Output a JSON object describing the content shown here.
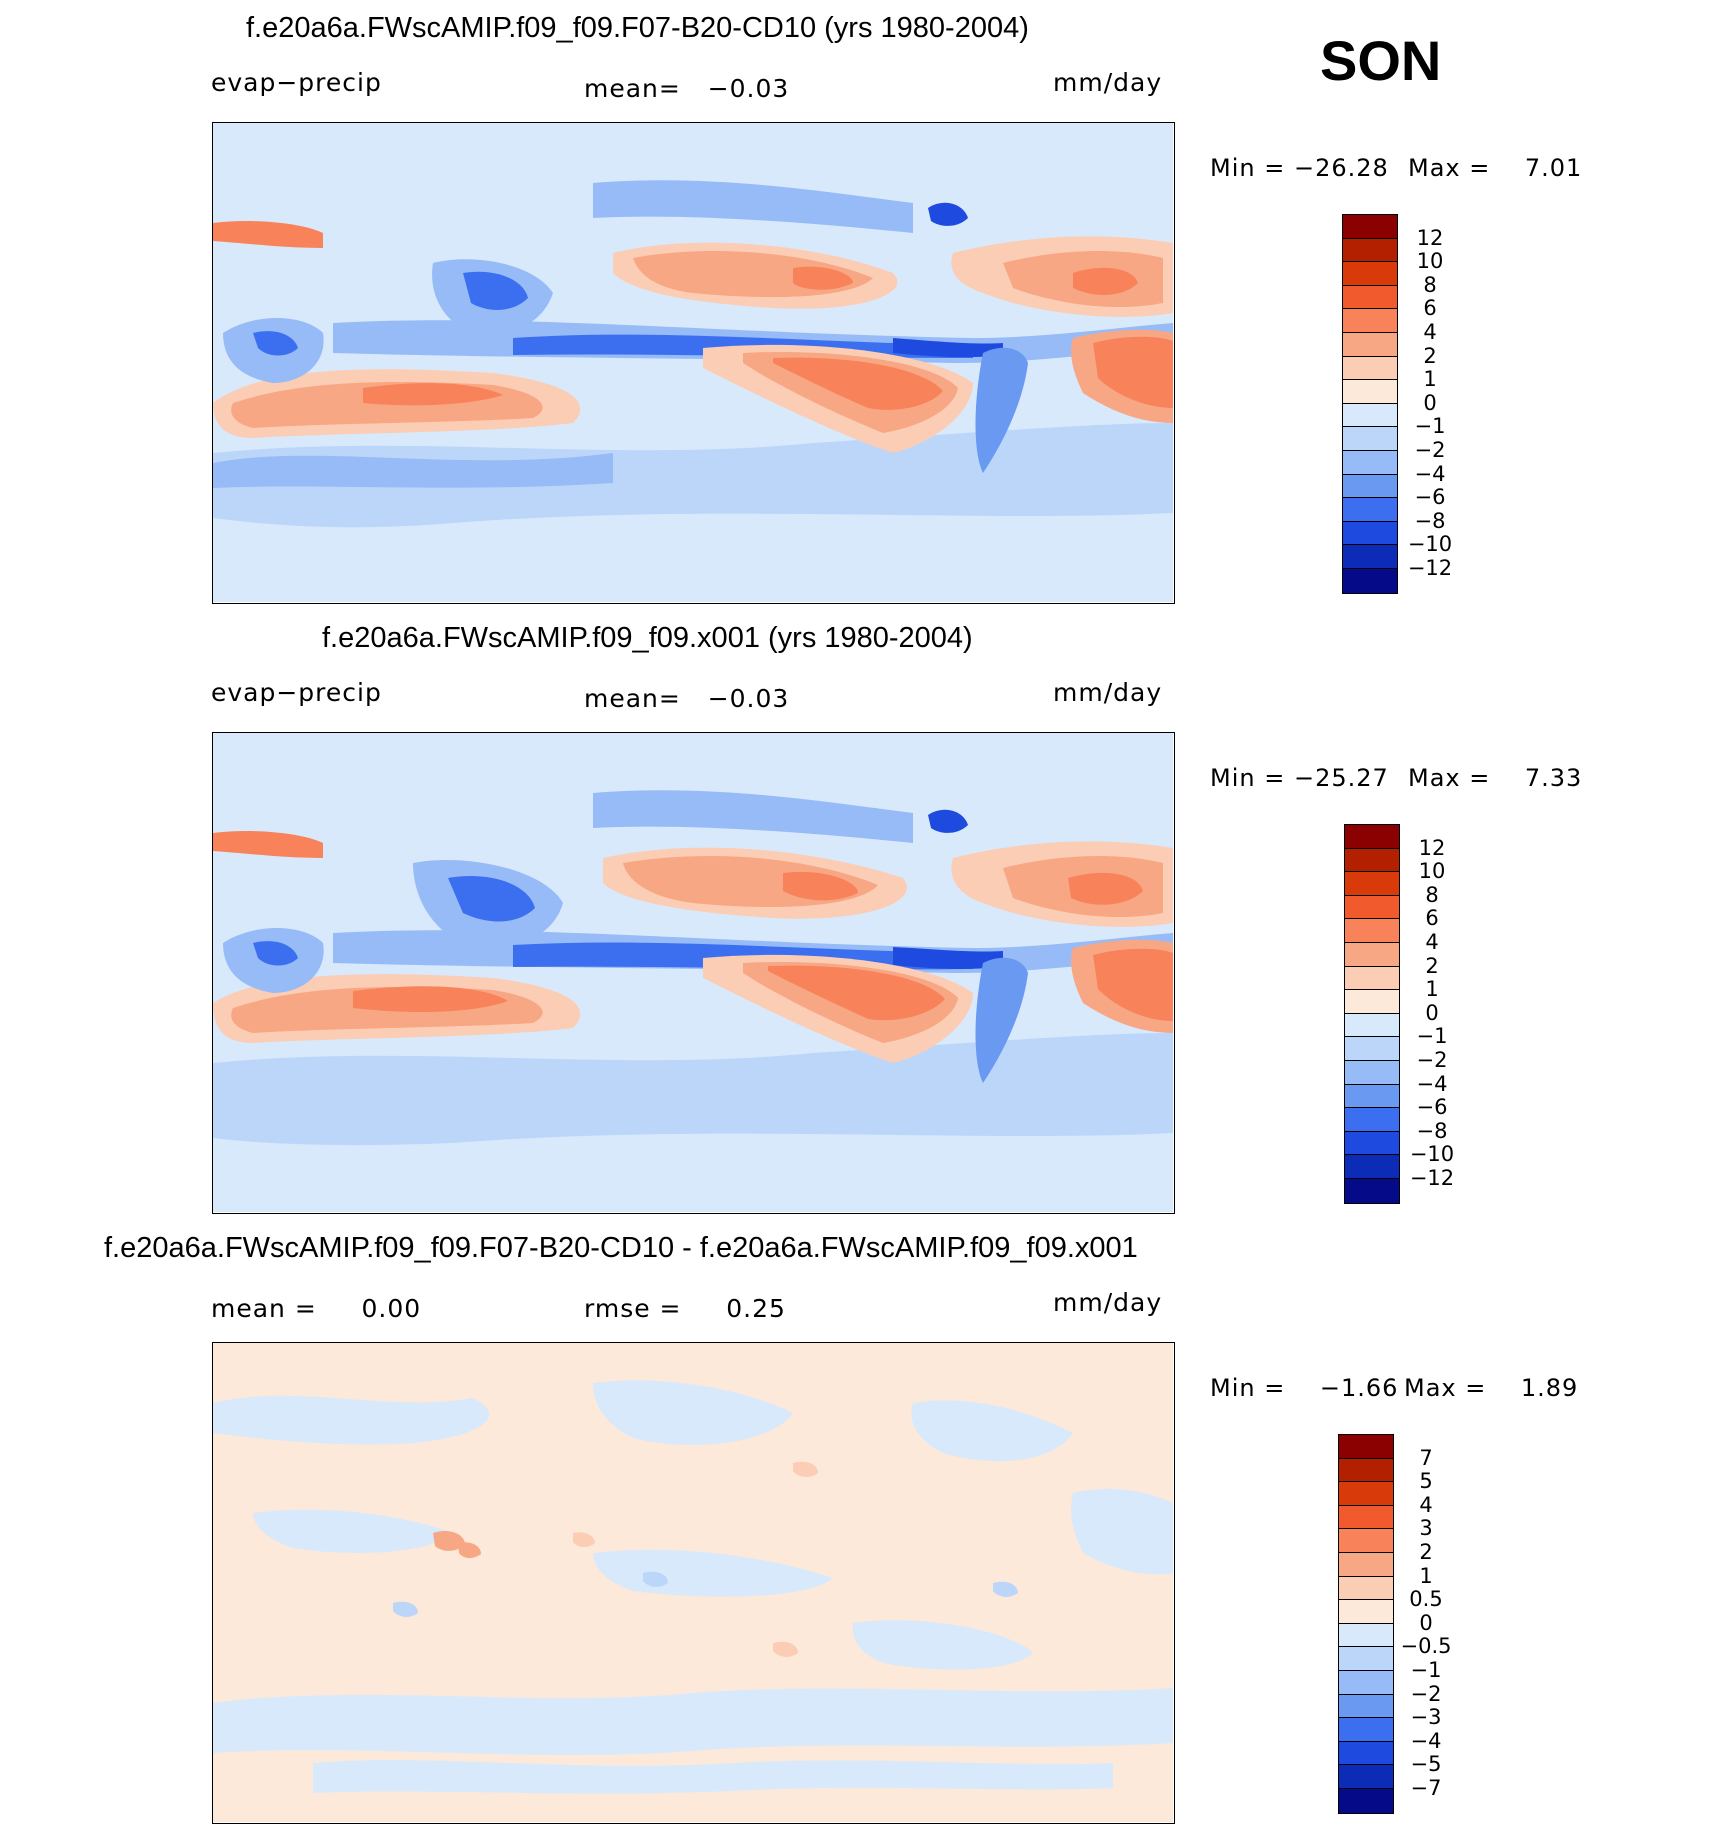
{
  "season": "SON",
  "units": "mm/day",
  "panels": [
    {
      "title": "f.e20a6a.FWscAMIP.f09_f09.F07-B20-CD10 (yrs 1980-2004)",
      "left_label": "evap−precip",
      "mean_label": "mean=",
      "mean_value": "−0.03",
      "units": "mm/day",
      "min_label": "Min  =",
      "min_value": "−26.28",
      "max_label": "Max  =",
      "max_value": "7.01"
    },
    {
      "title": "f.e20a6a.FWscAMIP.f09_f09.x001 (yrs 1980-2004)",
      "left_label": "evap−precip",
      "mean_label": "mean=",
      "mean_value": "−0.03",
      "units": "mm/day",
      "min_label": "Min  =",
      "min_value": "−25.27",
      "max_label": "Max  =",
      "max_value": "7.33"
    },
    {
      "title": "f.e20a6a.FWscAMIP.f09_f09.F07-B20-CD10 - f.e20a6a.FWscAMIP.f09_f09.x001",
      "mean_label": "mean  =",
      "mean_value": "0.00",
      "rmse_label": "rmse  =",
      "rmse_value": "0.25",
      "units": "mm/day",
      "min_label": "Min  =",
      "min_value": "−1.66",
      "max_label": "Max  =",
      "max_value": "1.89"
    }
  ],
  "colorbar_abs": {
    "levels": [
      "12",
      "10",
      "8",
      "6",
      "4",
      "2",
      "1",
      "0",
      "−1",
      "−2",
      "−4",
      "−6",
      "−8",
      "−10",
      "−12"
    ],
    "colors": [
      "#8b0000",
      "#b22000",
      "#d93a0a",
      "#f05a2c",
      "#f8835a",
      "#f8a785",
      "#fccdb5",
      "#fde9d9",
      "#d8e9fc",
      "#bcd6fa",
      "#96bbf6",
      "#6a99f2",
      "#3c6ff0",
      "#1e4ae0",
      "#0c2cb8",
      "#040a88"
    ]
  },
  "colorbar_diff": {
    "levels": [
      "7",
      "5",
      "4",
      "3",
      "2",
      "1",
      "0.5",
      "0",
      "−0.5",
      "−1",
      "−2",
      "−3",
      "−4",
      "−5",
      "−7"
    ],
    "colors": [
      "#8b0000",
      "#b22000",
      "#d93a0a",
      "#f05a2c",
      "#f8835a",
      "#f8a785",
      "#fccdb5",
      "#fde9d9",
      "#d8e9fc",
      "#bcd6fa",
      "#96bbf6",
      "#6a99f2",
      "#3c6ff0",
      "#1e4ae0",
      "#0c2cb8",
      "#040a88"
    ]
  },
  "chart_data": [
    {
      "type": "heatmap",
      "title": "f.e20a6a.FWscAMIP.f09_f09.F07-B20-CD10 (yrs 1980-2004)",
      "variable": "evap−precip",
      "units": "mm/day",
      "mean": -0.03,
      "min": -26.28,
      "max": 7.01,
      "contour_levels": [
        -12,
        -10,
        -8,
        -6,
        -4,
        -2,
        -1,
        0,
        1,
        2,
        4,
        6,
        8,
        10,
        12
      ]
    },
    {
      "type": "heatmap",
      "title": "f.e20a6a.FWscAMIP.f09_f09.x001 (yrs 1980-2004)",
      "variable": "evap−precip",
      "units": "mm/day",
      "mean": -0.03,
      "min": -25.27,
      "max": 7.33,
      "contour_levels": [
        -12,
        -10,
        -8,
        -6,
        -4,
        -2,
        -1,
        0,
        1,
        2,
        4,
        6,
        8,
        10,
        12
      ]
    },
    {
      "type": "heatmap",
      "title": "f.e20a6a.FWscAMIP.f09_f09.F07-B20-CD10 - f.e20a6a.FWscAMIP.f09_f09.x001",
      "units": "mm/day",
      "mean": 0.0,
      "rmse": 0.25,
      "min": -1.66,
      "max": 1.89,
      "contour_levels": [
        -7,
        -5,
        -4,
        -3,
        -2,
        -1,
        -0.5,
        0,
        0.5,
        1,
        2,
        3,
        4,
        5,
        7
      ]
    }
  ]
}
